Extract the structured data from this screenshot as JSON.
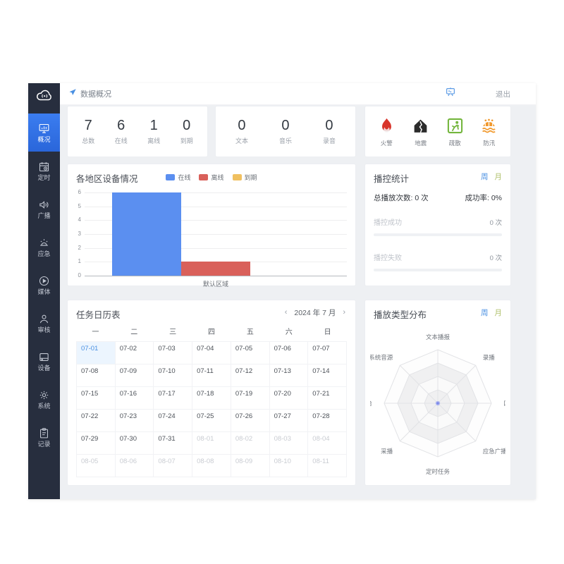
{
  "palette": {
    "sidebar_bg": "#272e3e",
    "active_blue": "#2f6fe0",
    "link_blue": "#4a90e2",
    "bar_online": "#5b8ff0",
    "bar_offline": "#d9605a",
    "bar_expired": "#f0c060",
    "content_bg": "#eef0f3"
  },
  "header": {
    "breadcrumb": "数据概况",
    "logout_label": "退出"
  },
  "sidebar": {
    "items": [
      {
        "id": "overview",
        "label": "概况",
        "icon": "monitor-chart-icon",
        "active": true
      },
      {
        "id": "timing",
        "label": "定时",
        "icon": "calendar-clock-icon",
        "active": false
      },
      {
        "id": "broadcast",
        "label": "广播",
        "icon": "speaker-icon",
        "active": false
      },
      {
        "id": "emergency",
        "label": "应急",
        "icon": "siren-icon",
        "active": false
      },
      {
        "id": "media",
        "label": "媒体",
        "icon": "play-circle-icon",
        "active": false
      },
      {
        "id": "audit",
        "label": "审核",
        "icon": "person-icon",
        "active": false
      },
      {
        "id": "devices",
        "label": "设备",
        "icon": "device-icon",
        "active": false
      },
      {
        "id": "system",
        "label": "系统",
        "icon": "gear-icon",
        "active": false
      },
      {
        "id": "records",
        "label": "记录",
        "icon": "clipboard-icon",
        "active": false
      }
    ]
  },
  "device_stats": {
    "items": [
      {
        "value": "7",
        "label": "总数"
      },
      {
        "value": "6",
        "label": "在线"
      },
      {
        "value": "1",
        "label": "离线"
      },
      {
        "value": "0",
        "label": "到期"
      }
    ]
  },
  "media_stats": {
    "items": [
      {
        "value": "0",
        "label": "文本"
      },
      {
        "value": "0",
        "label": "音乐"
      },
      {
        "value": "0",
        "label": "录音"
      }
    ]
  },
  "emergency_shortcuts": {
    "items": [
      {
        "label": "火警",
        "icon": "fire-icon",
        "color": "#d8342a"
      },
      {
        "label": "地震",
        "icon": "earthquake-icon",
        "color": "#2b2b2b"
      },
      {
        "label": "疏散",
        "icon": "evacuation-icon",
        "color": "#74b63e"
      },
      {
        "label": "防汛",
        "icon": "flood-icon",
        "color": "#f1992d"
      }
    ]
  },
  "chart_data": [
    {
      "type": "bar",
      "title": "各地区设备情况",
      "categories": [
        "默认区域"
      ],
      "series": [
        {
          "name": "在线",
          "values": [
            6
          ],
          "color": "#5b8ff0"
        },
        {
          "name": "离线",
          "values": [
            1
          ],
          "color": "#d9605a"
        },
        {
          "name": "到期",
          "values": [
            0
          ],
          "color": "#f0c060"
        }
      ],
      "ylim": [
        0,
        6
      ],
      "ytick_step": 1,
      "grid": true,
      "legend_position": "top"
    },
    {
      "type": "radar",
      "title": "播放类型分布",
      "categories": [
        "文本播报",
        "录播",
        "口播",
        "应急广播",
        "定时任务",
        "采播",
        "FM电台",
        "系统音源"
      ],
      "series": [
        {
          "name": "播放类型",
          "values": [
            0,
            0,
            0,
            0,
            0,
            0,
            0,
            0
          ]
        }
      ],
      "rings": 4
    }
  ],
  "play_stats": {
    "title": "播控统计",
    "week_label": "周",
    "month_label": "月",
    "total": "总播放次数: 0 次",
    "success_rate": "成功率: 0%",
    "rows": [
      {
        "label": "播控成功",
        "value": "0 次",
        "progress": 0
      },
      {
        "label": "播控失败",
        "value": "0 次",
        "progress": 0
      }
    ]
  },
  "calendar": {
    "title": "任务日历表",
    "prev": "‹",
    "next": "›",
    "month_label": "2024 年 7 月",
    "weekdays": [
      "一",
      "二",
      "三",
      "四",
      "五",
      "六",
      "日"
    ],
    "today": "07-01",
    "dates": [
      "07-01",
      "07-02",
      "07-03",
      "07-04",
      "07-05",
      "07-06",
      "07-07",
      "07-08",
      "07-09",
      "07-10",
      "07-11",
      "07-12",
      "07-13",
      "07-14",
      "07-15",
      "07-16",
      "07-17",
      "07-18",
      "07-19",
      "07-20",
      "07-21",
      "07-22",
      "07-23",
      "07-24",
      "07-25",
      "07-26",
      "07-27",
      "07-28",
      "07-29",
      "07-30",
      "07-31",
      "08-01",
      "08-02",
      "08-03",
      "08-04",
      "08-05",
      "08-06",
      "08-07",
      "08-08",
      "08-09",
      "08-10",
      "08-11"
    ]
  },
  "radar": {
    "title": "播放类型分布",
    "week_label": "周",
    "month_label": "月"
  }
}
